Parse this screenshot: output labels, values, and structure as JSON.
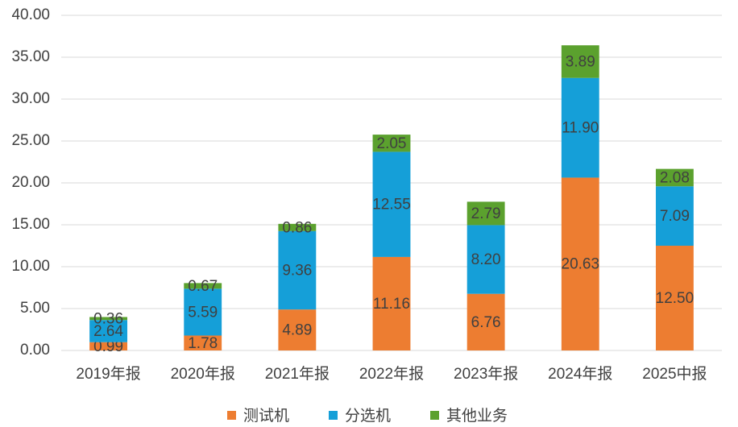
{
  "chart_data": {
    "type": "stacked_bar",
    "categories": [
      "2019年报",
      "2020年报",
      "2021年报",
      "2022年报",
      "2023年报",
      "2024年报",
      "2025中报"
    ],
    "series": [
      {
        "name": "测试机",
        "color": "#ED7D31",
        "values": [
          0.99,
          1.78,
          4.89,
          11.16,
          6.76,
          20.63,
          12.5
        ],
        "value_labels": [
          "0.99",
          "1.78",
          "4.89",
          "11.16",
          "6.76",
          "20.63",
          "12.50"
        ]
      },
      {
        "name": "分选机",
        "color": "#159FD8",
        "values": [
          2.64,
          5.59,
          9.36,
          12.55,
          8.2,
          11.9,
          7.09
        ],
        "value_labels": [
          "2.64",
          "5.59",
          "9.36",
          "12.55",
          "8.20",
          "11.90",
          "7.09"
        ]
      },
      {
        "name": "其他业务",
        "color": "#5BA12E",
        "values": [
          0.36,
          0.67,
          0.86,
          2.05,
          2.79,
          3.89,
          2.08
        ],
        "value_labels": [
          "0.36",
          "0.67",
          "0.86",
          "2.05",
          "2.79",
          "3.89",
          "2.08"
        ]
      }
    ],
    "ylim": [
      0,
      40
    ],
    "yticks": [
      {
        "value": 0,
        "label": "0.00"
      },
      {
        "value": 5,
        "label": "5.00"
      },
      {
        "value": 10,
        "label": "10.00"
      },
      {
        "value": 15,
        "label": "15.00"
      },
      {
        "value": 20,
        "label": "20.00"
      },
      {
        "value": 25,
        "label": "25.00"
      },
      {
        "value": 30,
        "label": "30.00"
      },
      {
        "value": 35,
        "label": "35.00"
      },
      {
        "value": 40,
        "label": "40.00"
      }
    ],
    "grid": true,
    "legend": "bottom"
  }
}
